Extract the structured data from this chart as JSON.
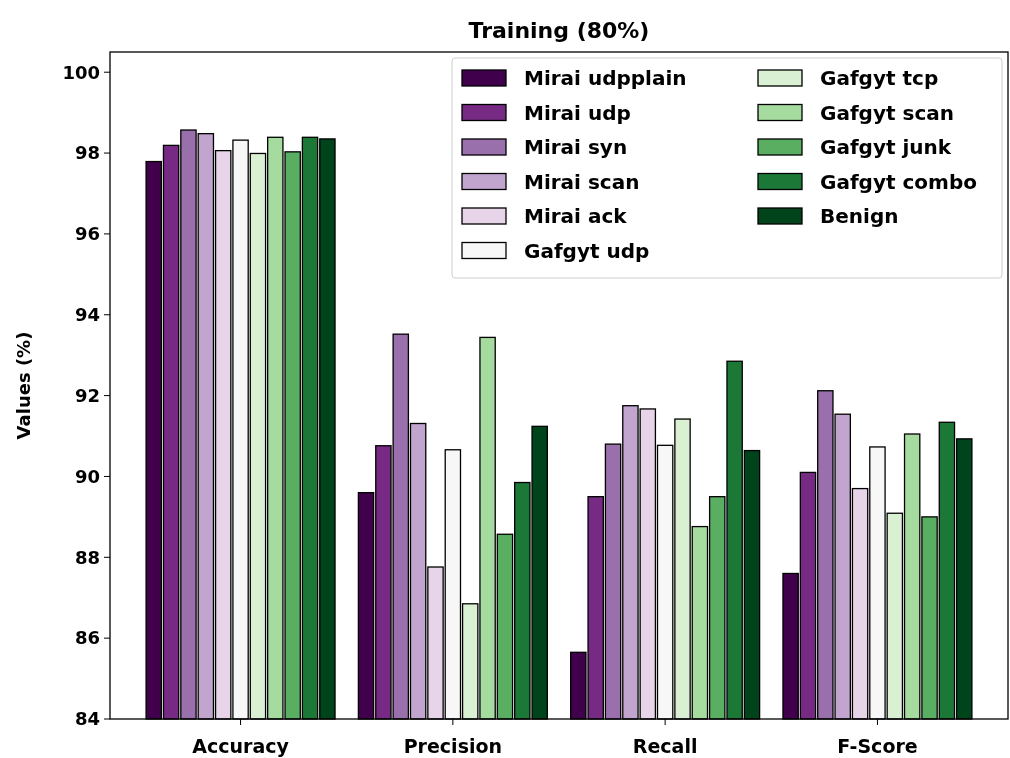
{
  "chart_data": {
    "type": "bar",
    "title": "Training (80%)",
    "ylabel": "Values (%)",
    "categories": [
      "Accuracy",
      "Precision",
      "Recall",
      "F-Score"
    ],
    "series": [
      {
        "name": "Mirai udpplain",
        "color": "#40004b",
        "values": [
          97.79,
          89.6,
          85.65,
          87.6
        ]
      },
      {
        "name": "Mirai udp",
        "color": "#762a83",
        "values": [
          98.19,
          90.76,
          89.5,
          90.1
        ]
      },
      {
        "name": "Mirai syn",
        "color": "#9970ab",
        "values": [
          98.57,
          93.52,
          90.8,
          92.12
        ]
      },
      {
        "name": "Mirai scan",
        "color": "#c2a5cf",
        "values": [
          98.48,
          91.31,
          91.75,
          91.54
        ]
      },
      {
        "name": "Mirai ack",
        "color": "#e7d4e8",
        "values": [
          98.06,
          87.76,
          91.67,
          89.7
        ]
      },
      {
        "name": "Gafgyt udp",
        "color": "#f7f7f7",
        "values": [
          98.32,
          90.66,
          90.77,
          90.73
        ]
      },
      {
        "name": "Gafgyt tcp",
        "color": "#d9f0d3",
        "values": [
          97.99,
          86.85,
          91.42,
          89.09
        ]
      },
      {
        "name": "Gafgyt scan",
        "color": "#a6dba0",
        "values": [
          98.39,
          93.44,
          88.76,
          91.05
        ]
      },
      {
        "name": "Gafgyt junk",
        "color": "#5aae61",
        "values": [
          98.03,
          88.57,
          89.5,
          89.0
        ]
      },
      {
        "name": "Gafgyt combo",
        "color": "#1b7837",
        "values": [
          98.39,
          89.85,
          92.85,
          91.34
        ]
      },
      {
        "name": "Benign",
        "color": "#00441b",
        "values": [
          98.35,
          91.24,
          90.64,
          90.93
        ]
      }
    ],
    "ylim": [
      84,
      100.5
    ],
    "yticks": [
      84,
      86,
      88,
      90,
      92,
      94,
      96,
      98,
      100
    ],
    "grid": false,
    "legend": "top right"
  }
}
